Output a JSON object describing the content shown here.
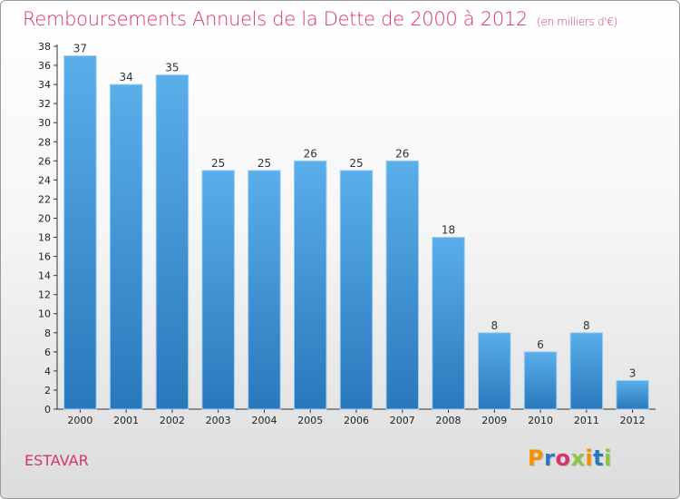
{
  "chart_data": {
    "type": "bar",
    "title": "Remboursements Annuels de la Dette de 2000 à 2012",
    "subtitle": "(en milliers d'€)",
    "categories": [
      "2000",
      "2001",
      "2002",
      "2003",
      "2004",
      "2005",
      "2006",
      "2007",
      "2008",
      "2009",
      "2010",
      "2011",
      "2012"
    ],
    "values": [
      37,
      34,
      35,
      25,
      25,
      26,
      25,
      26,
      18,
      8,
      6,
      8,
      3
    ],
    "ylim": [
      0,
      38
    ],
    "yticks": [
      "0",
      "2",
      "4",
      "6",
      "8",
      "10",
      "12",
      "14",
      "16",
      "18",
      "20",
      "22",
      "24",
      "26",
      "28",
      "30",
      "32",
      "34",
      "36",
      "38"
    ],
    "grid": false,
    "legend": "none",
    "bar_color_top": "#5aaeea",
    "bar_color_bottom": "#2a78bc"
  },
  "footer": {
    "commune": "ESTAVAR",
    "logo_text": "Proxiti"
  },
  "colors": {
    "title": "#d6336f",
    "logo_letters": [
      "#f39200",
      "#2a78bc",
      "#d6336f",
      "#8cc63f",
      "#f39200",
      "#2a78bc",
      "#8cc63f"
    ]
  }
}
